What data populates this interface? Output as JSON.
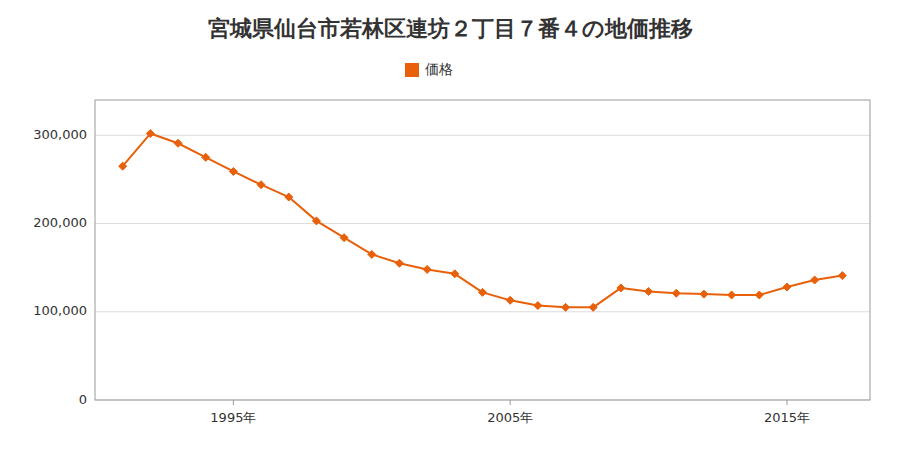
{
  "chart_data": {
    "type": "line",
    "title": "宮城県仙台市若林区連坊２丁目７番４の地価推移",
    "x": [
      1991,
      1992,
      1993,
      1994,
      1995,
      1996,
      1997,
      1998,
      1999,
      2000,
      2001,
      2002,
      2003,
      2004,
      2005,
      2006,
      2007,
      2008,
      2009,
      2010,
      2011,
      2012,
      2013,
      2014,
      2015,
      2016,
      2017
    ],
    "series": [
      {
        "name": "価格",
        "color": "#e8600a",
        "marker": "diamond",
        "values": [
          265000,
          302000,
          291000,
          275000,
          259000,
          244000,
          230000,
          203000,
          184000,
          165000,
          155000,
          148000,
          143000,
          122000,
          113000,
          107000,
          105000,
          105000,
          127000,
          123000,
          121000,
          120000,
          119000,
          119000,
          128000,
          136000,
          141000
        ]
      }
    ],
    "xlim": [
      1990,
      2018
    ],
    "xticks": [
      {
        "value": 1995,
        "label": "1995年"
      },
      {
        "value": 2005,
        "label": "2005年"
      },
      {
        "value": 2015,
        "label": "2015年"
      }
    ],
    "ylim": [
      0,
      340000
    ],
    "yticks": [
      0,
      {
        "value": 100000,
        "label": "100,000"
      },
      {
        "value": 200000,
        "label": "200,000"
      },
      {
        "value": 300000,
        "label": "300,000"
      }
    ],
    "grid": true,
    "legend": "top"
  }
}
